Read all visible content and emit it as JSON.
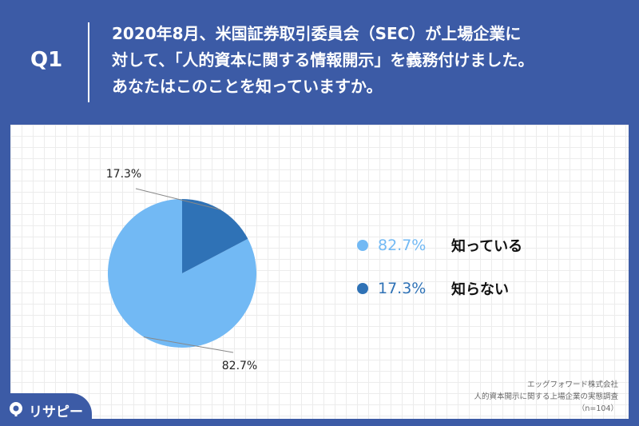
{
  "header": {
    "q_label": "Q1",
    "question_lines": [
      "2020年8月、米国証券取引委員会（SEC）が上場企業に",
      "対して、「人的資本に関する情報開示」を義務付けました。",
      "あなたはこのことを知っていますか。"
    ]
  },
  "chart_data": {
    "type": "pie",
    "slices": [
      {
        "label": "知っている",
        "value": 82.7,
        "value_label": "82.7%",
        "color": "#72b9f4"
      },
      {
        "label": "知らない",
        "value": 17.3,
        "value_label": "17.3%",
        "color": "#2f72b6"
      }
    ],
    "start_angle": "12 o'clock",
    "direction": "counterclockwise",
    "legend": "right",
    "data_labels": "outside with leader lines"
  },
  "legend": {
    "items": [
      {
        "pct": "82.7%",
        "name": "知っている",
        "color": "#72b9f4"
      },
      {
        "pct": "17.3%",
        "name": "知らない",
        "color": "#2f72b6"
      }
    ]
  },
  "source": {
    "company": "エッグフォワード株式会社",
    "survey": "人的資本開示に関する上場企業の実態調査",
    "n": "（n=104）"
  },
  "logo": {
    "text": "リサピー"
  },
  "colors": {
    "background": "#3c5ba6",
    "panel": "#ffffff",
    "light_blue": "#72b9f4",
    "dark_blue": "#2f72b6"
  }
}
